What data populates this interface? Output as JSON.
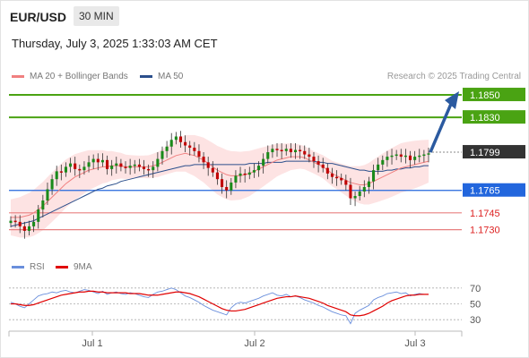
{
  "header": {
    "pair": "EUR/USD",
    "timeframe": "30 MIN"
  },
  "timestamp": "Thursday, July 3, 2025 1:33:03 AM CET",
  "legend": [
    {
      "label": "MA 20 + Bollinger Bands",
      "color": "#f08080"
    },
    {
      "label": "MA 50",
      "color": "#2b4f8c"
    }
  ],
  "credit": "Research © 2025 Trading Central",
  "rsi_legend": [
    {
      "label": "RSI",
      "color": "#6a8fdc"
    },
    {
      "label": "9MA",
      "color": "#e00000"
    }
  ],
  "chart_data": [
    {
      "type": "candlestick",
      "title": "EUR/USD",
      "x_ticks": [
        "Jul 1",
        "Jul 2",
        "Jul 3"
      ],
      "ylim": [
        1.1713,
        1.1858
      ],
      "levels": [
        {
          "label": "1.1850",
          "value": 1.185,
          "color": "#4aa313",
          "style": "resistance",
          "label_style": "filled"
        },
        {
          "label": "1.1830",
          "value": 1.183,
          "color": "#4aa313",
          "style": "resistance",
          "label_style": "filled"
        },
        {
          "label": "1.1799",
          "value": 1.1799,
          "color": "#333333",
          "style": "last",
          "label_style": "filled"
        },
        {
          "label": "1.1765",
          "value": 1.1765,
          "color": "#2266dd",
          "style": "pivot",
          "label_style": "filled"
        },
        {
          "label": "1.1745",
          "value": 1.1745,
          "color": "#e88080",
          "style": "support",
          "label_style": "text"
        },
        {
          "label": "1.1730",
          "value": 1.173,
          "color": "#e88080",
          "style": "support",
          "label_style": "text"
        }
      ],
      "close_path": [
        1.1738,
        1.1737,
        1.1733,
        1.1729,
        1.1733,
        1.1737,
        1.1748,
        1.1756,
        1.1766,
        1.1775,
        1.1782,
        1.1781,
        1.1786,
        1.1789,
        1.1784,
        1.1783,
        1.1786,
        1.179,
        1.1793,
        1.179,
        1.1792,
        1.1784,
        1.1787,
        1.1789,
        1.1786,
        1.1785,
        1.1787,
        1.1788,
        1.1786,
        1.1784,
        1.1783,
        1.1786,
        1.1793,
        1.18,
        1.1804,
        1.181,
        1.1813,
        1.1808,
        1.1805,
        1.1803,
        1.18,
        1.1795,
        1.179,
        1.1785,
        1.1781,
        1.1775,
        1.1768,
        1.1765,
        1.1772,
        1.1778,
        1.178,
        1.1779,
        1.1781,
        1.1783,
        1.1787,
        1.1793,
        1.1799,
        1.1802,
        1.1801,
        1.18,
        1.1802,
        1.1799,
        1.1801,
        1.18,
        1.1797,
        1.1795,
        1.1791,
        1.1788,
        1.1785,
        1.178,
        1.1777,
        1.1776,
        1.1774,
        1.177,
        1.1758,
        1.176,
        1.1764,
        1.1768,
        1.1773,
        1.1783,
        1.1788,
        1.1792,
        1.1795,
        1.1796,
        1.1797,
        1.1795,
        1.1796,
        1.1792,
        1.1795,
        1.1796,
        1.1797,
        1.1798
      ],
      "ma20_path": [
        1.1741,
        1.1741,
        1.1741,
        1.1742,
        1.1743,
        1.1745,
        1.1748,
        1.1751,
        1.1755,
        1.1759,
        1.1763,
        1.1767,
        1.1771,
        1.1774,
        1.1777,
        1.1779,
        1.1781,
        1.1783,
        1.1784,
        1.1785,
        1.1786,
        1.1786,
        1.1787,
        1.1787,
        1.1787,
        1.1786,
        1.1786,
        1.1786,
        1.1786,
        1.1786,
        1.1786,
        1.1787,
        1.1788,
        1.179,
        1.1792,
        1.1794,
        1.1796,
        1.1797,
        1.1798,
        1.1797,
        1.1796,
        1.1794,
        1.1792,
        1.1789,
        1.1786,
        1.1783,
        1.1781,
        1.1779,
        1.1778,
        1.1778,
        1.1778,
        1.1779,
        1.178,
        1.1782,
        1.1784,
        1.1786,
        1.1788,
        1.179,
        1.1792,
        1.1793,
        1.1794,
        1.1795,
        1.1795,
        1.1795,
        1.1794,
        1.1792,
        1.179,
        1.1788,
        1.1786,
        1.1783,
        1.178,
        1.1778,
        1.1776,
        1.1774,
        1.1772,
        1.1771,
        1.177,
        1.177,
        1.1771,
        1.1773,
        1.1775,
        1.1777,
        1.1779,
        1.1781,
        1.1783,
        1.1785,
        1.1786,
        1.1787,
        1.1788,
        1.1789,
        1.179,
        1.1791
      ],
      "ma50_path": [
        1.1733,
        1.1734,
        1.1735,
        1.1736,
        1.1737,
        1.1738,
        1.174,
        1.1742,
        1.1744,
        1.1746,
        1.1748,
        1.175,
        1.1752,
        1.1754,
        1.1756,
        1.1758,
        1.176,
        1.1762,
        1.1764,
        1.1766,
        1.1767,
        1.1769,
        1.177,
        1.1771,
        1.1773,
        1.1774,
        1.1775,
        1.1776,
        1.1777,
        1.1778,
        1.1779,
        1.178,
        1.1781,
        1.1782,
        1.1783,
        1.1784,
        1.1785,
        1.1786,
        1.1787,
        1.1787,
        1.1788,
        1.1788,
        1.1788,
        1.1788,
        1.1788,
        1.1788,
        1.1788,
        1.1788,
        1.1788,
        1.1788,
        1.1788,
        1.1788,
        1.1789,
        1.1789,
        1.1789,
        1.1789,
        1.179,
        1.179,
        1.179,
        1.179,
        1.1791,
        1.1791,
        1.1791,
        1.1791,
        1.1791,
        1.1791,
        1.1791,
        1.179,
        1.179,
        1.1789,
        1.1789,
        1.1788,
        1.1787,
        1.1786,
        1.1785,
        1.1784,
        1.1783,
        1.1783,
        1.1782,
        1.1782,
        1.1782,
        1.1782,
        1.1783,
        1.1783,
        1.1784,
        1.1784,
        1.1785,
        1.1785,
        1.1786,
        1.1786,
        1.1787,
        1.1787
      ],
      "projection": {
        "from": 1.1799,
        "to": 1.185,
        "direction": "up"
      }
    },
    {
      "type": "line",
      "title": "RSI",
      "ylim": [
        20,
        80
      ],
      "y_ticks": [
        "70",
        "50",
        "30"
      ],
      "y_tick_values": [
        70,
        50,
        30
      ],
      "series": [
        {
          "name": "RSI",
          "values": [
            52,
            50,
            47,
            45,
            50,
            55,
            60,
            62,
            63,
            65,
            64,
            66,
            67,
            65,
            64,
            66,
            68,
            67,
            65,
            63,
            66,
            62,
            64,
            65,
            63,
            62,
            64,
            63,
            61,
            59,
            58,
            62,
            65,
            66,
            68,
            70,
            68,
            64,
            60,
            58,
            55,
            52,
            48,
            45,
            42,
            40,
            38,
            36,
            45,
            50,
            52,
            51,
            53,
            55,
            57,
            60,
            62,
            64,
            61,
            60,
            62,
            59,
            60,
            58,
            55,
            53,
            51,
            48,
            46,
            43,
            40,
            38,
            36,
            35,
            25,
            38,
            42,
            45,
            48,
            55,
            58,
            60,
            63,
            64,
            65,
            63,
            64,
            60,
            62,
            63,
            62,
            62
          ]
        },
        {
          "name": "9MA",
          "values": [
            50,
            50,
            49,
            48,
            48,
            49,
            51,
            53,
            55,
            57,
            59,
            61,
            62,
            63,
            64,
            65,
            65,
            66,
            66,
            65,
            65,
            64,
            64,
            64,
            64,
            64,
            63,
            63,
            63,
            62,
            61,
            61,
            61,
            62,
            63,
            64,
            65,
            65,
            64,
            63,
            61,
            59,
            56,
            53,
            50,
            47,
            44,
            42,
            41,
            41,
            42,
            43,
            45,
            47,
            49,
            51,
            53,
            55,
            57,
            58,
            59,
            59,
            60,
            59,
            58,
            57,
            55,
            53,
            51,
            48,
            46,
            44,
            42,
            40,
            36,
            35,
            35,
            36,
            38,
            41,
            44,
            47,
            51,
            54,
            56,
            58,
            60,
            61,
            61,
            62,
            62,
            62
          ]
        }
      ]
    }
  ]
}
